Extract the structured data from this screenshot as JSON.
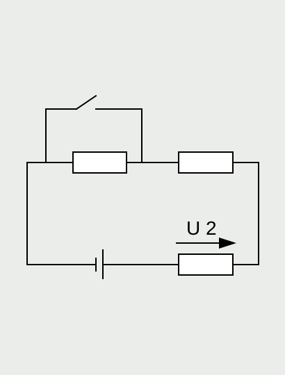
{
  "diagram": {
    "voltage_label": "U 2",
    "colors": {
      "background": "#ebedea",
      "line": "#000000",
      "resistor_fill": "#ffffff"
    },
    "components": [
      {
        "name": "switch",
        "icon": "switch-open-icon"
      },
      {
        "name": "resistor-1",
        "icon": "resistor-icon"
      },
      {
        "name": "resistor-2",
        "icon": "resistor-icon"
      },
      {
        "name": "resistor-3",
        "icon": "resistor-icon"
      },
      {
        "name": "battery",
        "icon": "battery-icon"
      },
      {
        "name": "voltage-arrow",
        "icon": "arrow-right-icon"
      }
    ]
  }
}
